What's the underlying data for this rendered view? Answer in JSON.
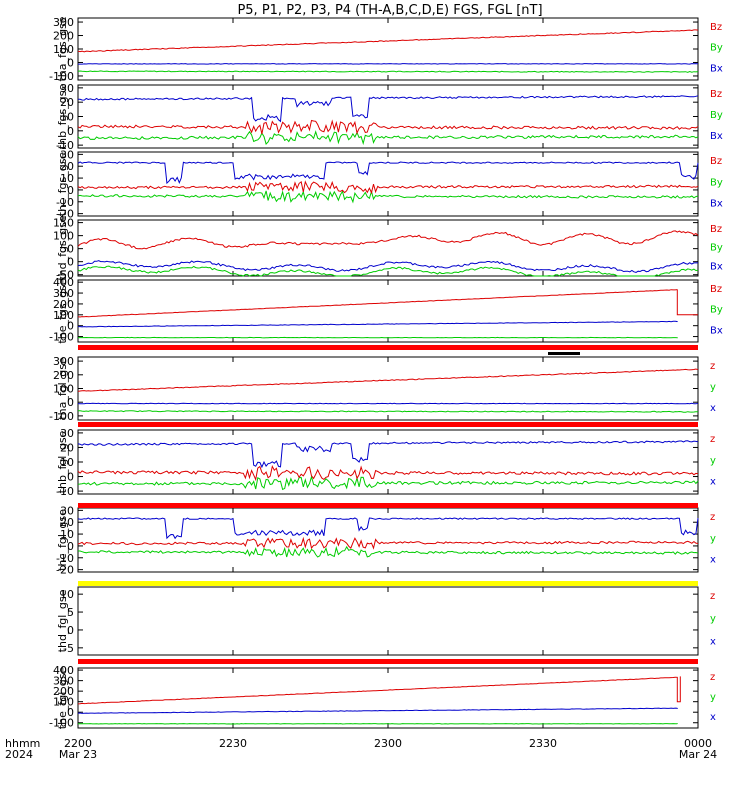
{
  "title": "P5, P1, P2, P3, P4 (TH-A,B,C,D,E) FGS, FGL [nT]",
  "colors": {
    "x": "#0000cc",
    "y": "#00cc00",
    "z": "#dd0000",
    "bar_red": "#ff0000",
    "bar_yellow": "#ffff00",
    "bar_black": "#000000"
  },
  "x_axis": {
    "row_label_1": "hhmm",
    "row_label_2": "2024",
    "ticks": [
      {
        "value": 0,
        "label": "2200",
        "sub": "Mar 23"
      },
      {
        "value": 30,
        "label": "2230",
        "sub": ""
      },
      {
        "value": 60,
        "label": "2300",
        "sub": ""
      },
      {
        "value": 90,
        "label": "2330",
        "sub": ""
      },
      {
        "value": 120,
        "label": "0000",
        "sub": "Mar 24"
      }
    ]
  },
  "chart_data": [
    {
      "type": "line",
      "ylabel": "tha_fgs_gse",
      "ylim": [
        -130,
        330
      ],
      "yticks": [
        300,
        200,
        100,
        0,
        -100
      ],
      "legend": [
        "Bz",
        "By",
        "Bx"
      ],
      "profile": "smooth",
      "series": [
        {
          "name": "Bx",
          "base": -10,
          "end": -10,
          "noise": 2
        },
        {
          "name": "By",
          "base": -65,
          "end": -70,
          "noise": 3
        },
        {
          "name": "Bz",
          "base": 80,
          "end": 240,
          "noise": 3
        }
      ]
    },
    {
      "type": "line",
      "ylabel": "thb_fgs_gse",
      "ylim": [
        -12,
        32
      ],
      "yticks": [
        30,
        20,
        10,
        0,
        -10
      ],
      "legend": [
        "Bz",
        "By",
        "Bx"
      ],
      "profile": "dips2",
      "series": [
        {
          "name": "Bx",
          "base": 22,
          "end": 24,
          "noise": 0.6
        },
        {
          "name": "By",
          "base": -5,
          "end": -4,
          "noise": 1
        },
        {
          "name": "Bz",
          "base": 3,
          "end": 2,
          "noise": 1
        }
      ]
    },
    {
      "type": "line",
      "ylabel": "thc_fgs_gse",
      "ylim": [
        -22,
        32
      ],
      "yticks": [
        30,
        20,
        10,
        0,
        -10,
        -20
      ],
      "legend": [
        "Bz",
        "By",
        "Bx"
      ],
      "profile": "dips3",
      "series": [
        {
          "name": "Bx",
          "base": 23,
          "end": 23,
          "noise": 0.6
        },
        {
          "name": "By",
          "base": -5,
          "end": -6,
          "noise": 1
        },
        {
          "name": "Bz",
          "base": 2,
          "end": 3,
          "noise": 1
        }
      ]
    },
    {
      "type": "line",
      "ylabel": "thd_fgs_gse",
      "ylim": [
        -55,
        160
      ],
      "yticks": [
        150,
        100,
        50,
        0,
        -50
      ],
      "legend": [
        "Bz",
        "By",
        "Bx"
      ],
      "profile": "wavy",
      "series": [
        {
          "name": "Bx",
          "base": -15,
          "end": -20,
          "noise": 4
        },
        {
          "name": "By",
          "base": -35,
          "end": -45,
          "noise": 4
        },
        {
          "name": "Bz",
          "base": 60,
          "end": 100,
          "noise": 4
        }
      ]
    },
    {
      "type": "line",
      "ylabel": "the_fgs_gse",
      "ylim": [
        -150,
        420
      ],
      "yticks": [
        400,
        300,
        200,
        100,
        0,
        -100
      ],
      "legend": [
        "Bz",
        "By",
        "Bx"
      ],
      "profile": "end_drop",
      "series": [
        {
          "name": "Bx",
          "base": -10,
          "end": 40,
          "noise": 2
        },
        {
          "name": "By",
          "base": -110,
          "end": -110,
          "noise": 2
        },
        {
          "name": "Bz",
          "base": 80,
          "end": 340,
          "noise": 2
        }
      ]
    },
    {
      "type": "line",
      "ylabel": "tha_fgl_gse",
      "ylim": [
        -130,
        330
      ],
      "yticks": [
        300,
        200,
        100,
        0,
        -100
      ],
      "legend": [
        "z",
        "y",
        "x"
      ],
      "profile": "smooth",
      "series": [
        {
          "name": "x",
          "base": -10,
          "end": -10,
          "noise": 2
        },
        {
          "name": "y",
          "base": -65,
          "end": -70,
          "noise": 3
        },
        {
          "name": "z",
          "base": 80,
          "end": 240,
          "noise": 3
        }
      ]
    },
    {
      "type": "line",
      "ylabel": "thb_fgl_gse",
      "ylim": [
        -12,
        32
      ],
      "yticks": [
        30,
        20,
        10,
        0,
        -10
      ],
      "legend": [
        "z",
        "y",
        "x"
      ],
      "profile": "dips2",
      "series": [
        {
          "name": "x",
          "base": 22,
          "end": 24,
          "noise": 0.6
        },
        {
          "name": "y",
          "base": -5,
          "end": -4,
          "noise": 1
        },
        {
          "name": "z",
          "base": 3,
          "end": 2,
          "noise": 1
        }
      ]
    },
    {
      "type": "line",
      "ylabel": "thc_fgl_gse",
      "ylim": [
        -22,
        32
      ],
      "yticks": [
        30,
        20,
        10,
        0,
        -10,
        -20
      ],
      "legend": [
        "z",
        "y",
        "x"
      ],
      "profile": "dips3",
      "series": [
        {
          "name": "x",
          "base": 23,
          "end": 23,
          "noise": 0.6
        },
        {
          "name": "y",
          "base": -5,
          "end": -6,
          "noise": 1
        },
        {
          "name": "z",
          "base": 2,
          "end": 3,
          "noise": 1
        }
      ]
    },
    {
      "type": "line",
      "ylabel": "thd_fgl_gse",
      "ylim": [
        -7,
        12
      ],
      "yticks": [
        10,
        5,
        0,
        -5
      ],
      "legend": [
        "z",
        "y",
        "x"
      ],
      "profile": "empty",
      "series": []
    },
    {
      "type": "line",
      "ylabel": "the_fgl_gse",
      "ylim": [
        -150,
        420
      ],
      "yticks": [
        400,
        300,
        200,
        100,
        0,
        -100
      ],
      "legend": [
        "z",
        "y",
        "x"
      ],
      "profile": "end_spike",
      "series": [
        {
          "name": "x",
          "base": -10,
          "end": 40,
          "noise": 2
        },
        {
          "name": "y",
          "base": -110,
          "end": -110,
          "noise": 2
        },
        {
          "name": "z",
          "base": 80,
          "end": 340,
          "noise": 2
        }
      ]
    }
  ]
}
